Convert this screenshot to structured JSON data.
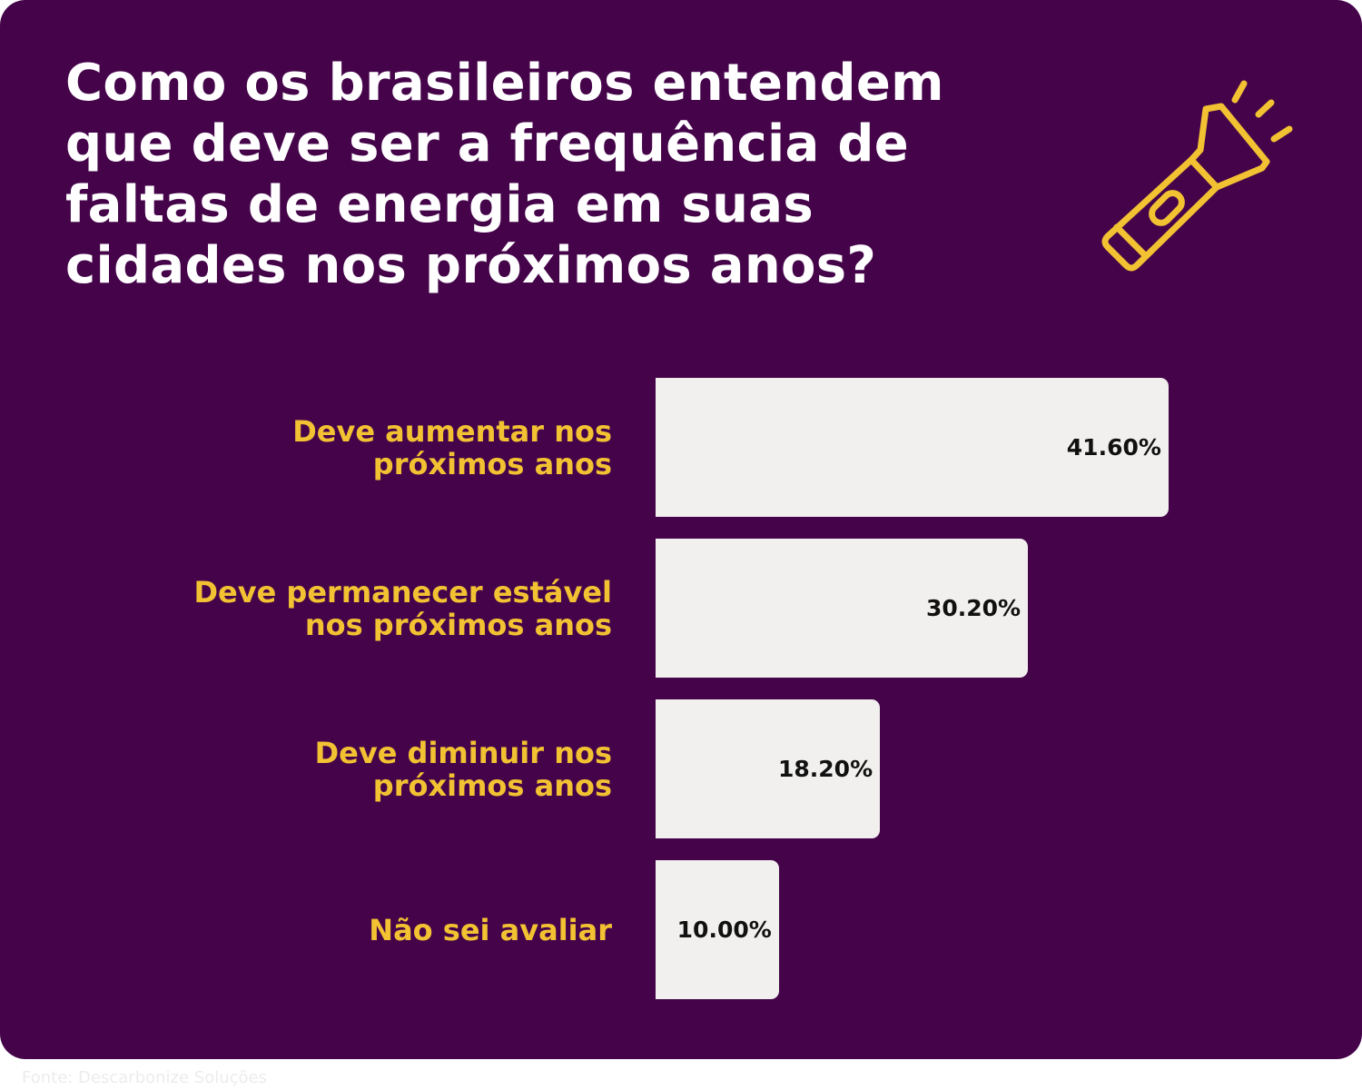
{
  "chart_data": {
    "type": "bar",
    "orientation": "horizontal",
    "title": "Como os brasileiros entendem\nque deve ser a frequência de\nfaltas de energia em suas\ncidades nos próximos anos?",
    "categories": [
      "Deve aumentar nos\npróximos anos",
      "Deve permanecer estável\nnos próximos anos",
      "Deve diminuir nos\npróximos anos",
      "Não sei avaliar"
    ],
    "values": [
      41.6,
      30.2,
      18.2,
      10.0
    ],
    "value_labels": [
      "41.60%",
      "30.20%",
      "18.20%",
      "10.00%"
    ],
    "color": "#f1f0ee",
    "source": "Fonte: Descarbonize Soluções"
  }
}
